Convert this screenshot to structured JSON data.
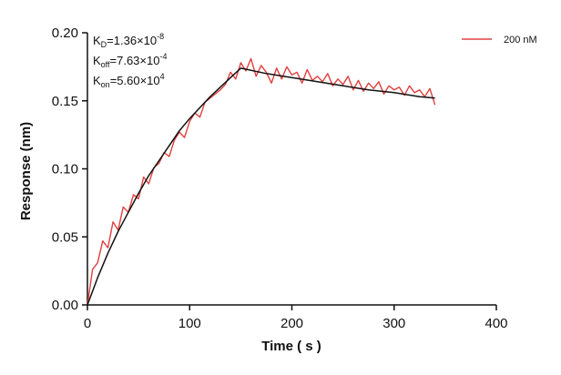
{
  "chart_data": {
    "type": "line",
    "title": "",
    "xlabel": "Time ( s )",
    "ylabel": "Response (nm)",
    "xlim": [
      0,
      400
    ],
    "ylim": [
      0,
      0.2
    ],
    "x_ticks": [
      "0",
      "100",
      "200",
      "300",
      "400"
    ],
    "y_ticks": [
      "0.00",
      "0.05",
      "0.10",
      "0.15",
      "0.20"
    ],
    "grid": false,
    "legend": {
      "position": "top-right",
      "entries": [
        "200 nM"
      ]
    },
    "annotations": {
      "kd": {
        "main": "K",
        "sub": "D",
        "value": "=1.36×10",
        "exp": "-8"
      },
      "koff": {
        "main": "K",
        "sub": "off",
        "value": "=7.63×10",
        "exp": "-4"
      },
      "kon": {
        "main": "K",
        "sub": "on",
        "value": "=5.60×10",
        "exp": "4"
      }
    },
    "series": [
      {
        "name": "200 nM",
        "kind": "measured",
        "color": "#e0403f",
        "x": [
          0,
          5,
          10,
          15,
          20,
          25,
          30,
          35,
          40,
          45,
          50,
          55,
          60,
          65,
          70,
          75,
          80,
          85,
          90,
          95,
          100,
          105,
          110,
          115,
          120,
          125,
          130,
          135,
          140,
          145,
          150,
          155,
          160,
          165,
          170,
          175,
          180,
          185,
          190,
          195,
          200,
          205,
          210,
          215,
          220,
          225,
          230,
          235,
          240,
          245,
          250,
          255,
          260,
          265,
          270,
          275,
          280,
          285,
          290,
          295,
          300,
          305,
          310,
          315,
          320,
          325,
          330,
          335,
          340
        ],
        "y": [
          0.0,
          0.026,
          0.031,
          0.047,
          0.042,
          0.061,
          0.055,
          0.072,
          0.068,
          0.081,
          0.078,
          0.094,
          0.089,
          0.101,
          0.104,
          0.112,
          0.109,
          0.121,
          0.127,
          0.123,
          0.135,
          0.141,
          0.138,
          0.149,
          0.152,
          0.155,
          0.158,
          0.162,
          0.171,
          0.166,
          0.178,
          0.172,
          0.181,
          0.168,
          0.176,
          0.171,
          0.163,
          0.174,
          0.166,
          0.175,
          0.169,
          0.171,
          0.163,
          0.173,
          0.165,
          0.168,
          0.164,
          0.17,
          0.161,
          0.166,
          0.162,
          0.168,
          0.158,
          0.165,
          0.157,
          0.163,
          0.159,
          0.164,
          0.155,
          0.161,
          0.158,
          0.16,
          0.154,
          0.161,
          0.156,
          0.158,
          0.153,
          0.159,
          0.147
        ]
      },
      {
        "kind": "fit",
        "color": "#111111",
        "x": [
          0,
          10,
          20,
          30,
          40,
          50,
          60,
          70,
          80,
          90,
          100,
          110,
          120,
          130,
          140,
          150,
          175,
          200,
          225,
          250,
          275,
          300,
          325,
          340
        ],
        "y": [
          0.0,
          0.02,
          0.038,
          0.054,
          0.068,
          0.082,
          0.095,
          0.106,
          0.117,
          0.128,
          0.137,
          0.145,
          0.153,
          0.16,
          0.167,
          0.174,
          0.17,
          0.167,
          0.164,
          0.161,
          0.158,
          0.156,
          0.153,
          0.152
        ]
      }
    ]
  }
}
